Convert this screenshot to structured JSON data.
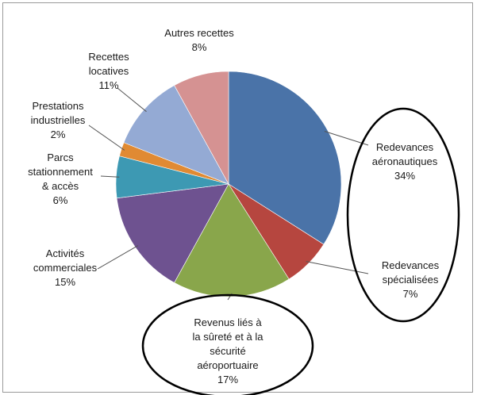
{
  "chart_data": {
    "type": "pie",
    "title": "",
    "slices": [
      {
        "label_lines": [
          "Redevances",
          "aéronautiques"
        ],
        "value": 34,
        "value_label": "34%",
        "color": "#4a73a8"
      },
      {
        "label_lines": [
          "Redevances",
          "spécialisées"
        ],
        "value": 7,
        "value_label": "7%",
        "color": "#b6463f"
      },
      {
        "label_lines": [
          "Revenus liés à",
          "la sûreté et à la",
          "sécurité",
          "aéroportuaire"
        ],
        "value": 17,
        "value_label": "17%",
        "color": "#89a64b"
      },
      {
        "label_lines": [
          "Activités",
          "commerciales"
        ],
        "value": 15,
        "value_label": "15%",
        "color": "#6e5290"
      },
      {
        "label_lines": [
          "Parcs",
          "stationnement",
          "& accès"
        ],
        "value": 6,
        "value_label": "6%",
        "color": "#3d99b3"
      },
      {
        "label_lines": [
          "Prestations",
          "industrielles"
        ],
        "value": 2,
        "value_label": "2%",
        "color": "#e08a33"
      },
      {
        "label_lines": [
          "Recettes",
          "locatives"
        ],
        "value": 11,
        "value_label": "11%",
        "color": "#94aad4"
      },
      {
        "label_lines": [
          "Autres recettes"
        ],
        "value": 8,
        "value_label": "8%",
        "color": "#d59292"
      }
    ],
    "highlighted": [
      "Redevances aéronautiques",
      "Redevances spécialisées",
      "Revenus liés à la sûreté et à la sécurité aéroportuaire"
    ],
    "start_angle_deg": 0,
    "direction": "clockwise"
  }
}
